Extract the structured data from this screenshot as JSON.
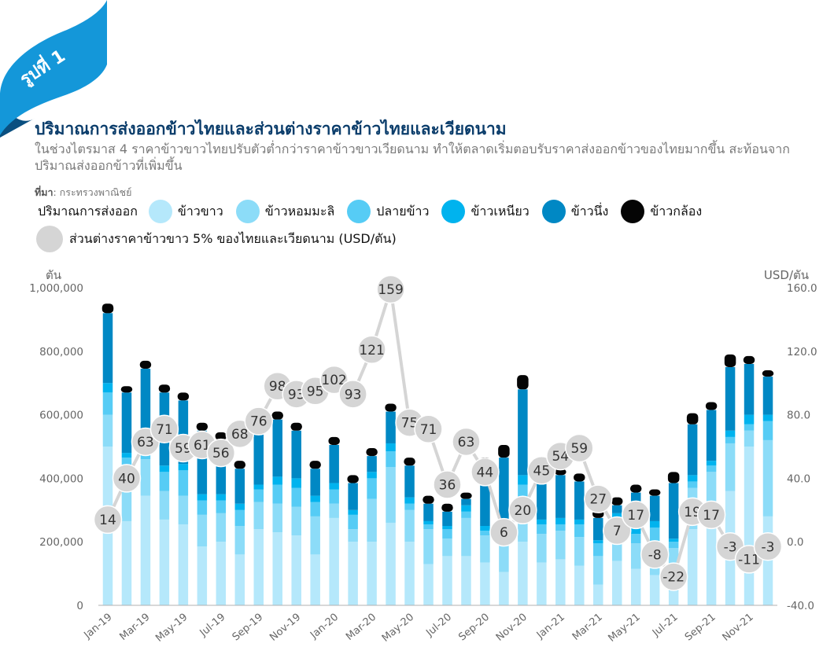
{
  "badge": {
    "label": "รูปที่ 1"
  },
  "title": "ปริมาณการส่งออกข้าวไทยและส่วนต่างราคาข้าวไทยและเวียดนาม",
  "subtitle": "ในช่วงไตรมาส 4 ราคาข้าวขาวไทยปรับตัวต่ำกว่าราคาข้าวขาวเวียดนาม ทำให้ตลาดเริ่มตอบรับราคาส่งออกข้าวของไทยมากขึ้น สะท้อนจากปริมาณส่งออกข้าวที่เพิ่มขึ้น",
  "source": {
    "label": "ที่มา",
    "text": ": กระทรวงพาณิชย์"
  },
  "legend": {
    "lead": "ปริมาณการส่งออก",
    "items": [
      {
        "label": "ข้าวขาว",
        "color": "#b5e8fb"
      },
      {
        "label": "ข้าวหอมมะลิ",
        "color": "#8cdcf8"
      },
      {
        "label": "ปลายข้าว",
        "color": "#56ccf5"
      },
      {
        "label": "ข้าวเหนียว",
        "color": "#00b3ee"
      },
      {
        "label": "ข้าวนึ่ง",
        "color": "#0088c4"
      },
      {
        "label": "ข้าวกล้อง",
        "color": "#050505"
      }
    ],
    "line_label": "ส่วนต่างราคาข้าวขาว 5% ของไทยและเวียดนาม (USD/ตัน)",
    "line_color": "#d5d5d5"
  },
  "chart_data": {
    "type": "bar",
    "left_axis": {
      "unit": "ตัน",
      "ticks": [
        "1,000,000",
        "800,000",
        "600,000",
        "400,000",
        "200,000",
        "0"
      ],
      "ylim": [
        0,
        1000000
      ]
    },
    "right_axis": {
      "unit": "USD/ตัน",
      "ticks": [
        "160.0",
        "120.0",
        "80.0",
        "40.0",
        "0.0",
        "-40.0"
      ],
      "ylim": [
        -40,
        160
      ]
    },
    "x": [
      "Jan-19",
      "Feb-19",
      "Mar-19",
      "Apr-19",
      "May-19",
      "Jun-19",
      "Jul-19",
      "Aug-19",
      "Sep-19",
      "Oct-19",
      "Nov-19",
      "Dec-19",
      "Jan-20",
      "Feb-20",
      "Mar-20",
      "Apr-20",
      "May-20",
      "Jun-20",
      "Jul-20",
      "Aug-20",
      "Sep-20",
      "Oct-20",
      "Nov-20",
      "Dec-20",
      "Jan-21",
      "Feb-21",
      "Mar-21",
      "Apr-21",
      "May-21",
      "Jun-21",
      "Jul-21",
      "Aug-21",
      "Sep-21",
      "Oct-21",
      "Nov-21",
      "Dec-21"
    ],
    "x_tick_labels": [
      "Jan-19",
      "Mar-19",
      "May-19",
      "Jul-19",
      "Sep-19",
      "Nov-19",
      "Jan-20",
      "Mar-20",
      "May-20",
      "Jul-20",
      "Sep-20",
      "Nov-20",
      "Jan-21",
      "Mar-21",
      "May-21",
      "Jul-21",
      "Sep-21",
      "Nov-21"
    ],
    "stacked_series": [
      {
        "label_ref": "ข้าวขาว",
        "values": [
          500000,
          265000,
          345000,
          270000,
          255000,
          185000,
          200000,
          160000,
          240000,
          230000,
          220000,
          160000,
          275000,
          200000,
          200000,
          260000,
          200000,
          130000,
          155000,
          155000,
          135000,
          105000,
          200000,
          135000,
          145000,
          125000,
          65000,
          140000,
          115000,
          95000,
          45000,
          240000,
          300000,
          360000,
          500000,
          280000
        ]
      },
      {
        "label_ref": "ข้าวหอมมะลิ",
        "values": [
          100000,
          130000,
          115000,
          90000,
          90000,
          100000,
          90000,
          90000,
          85000,
          90000,
          90000,
          120000,
          45000,
          40000,
          135000,
          175000,
          100000,
          110000,
          55000,
          120000,
          85000,
          100000,
          140000,
          90000,
          90000,
          90000,
          90000,
          90000,
          80000,
          90000,
          135000,
          130000,
          120000,
          150000,
          50000,
          240000
        ]
      },
      {
        "label_ref": "ปลายข้าว",
        "values": [
          70000,
          70000,
          65000,
          60000,
          80000,
          45000,
          40000,
          50000,
          40000,
          60000,
          60000,
          45000,
          45000,
          45000,
          65000,
          50000,
          20000,
          15000,
          30000,
          20000,
          15000,
          20000,
          40000,
          30000,
          20000,
          40000,
          40000,
          40000,
          30000,
          60000,
          20000,
          20000,
          20000,
          20000,
          20000,
          60000
        ]
      },
      {
        "label_ref": "ข้าวเหนียว",
        "values": [
          30000,
          15000,
          20000,
          20000,
          20000,
          20000,
          20000,
          20000,
          15000,
          25000,
          30000,
          20000,
          20000,
          15000,
          20000,
          25000,
          20000,
          10000,
          10000,
          20000,
          15000,
          20000,
          30000,
          15000,
          20000,
          15000,
          10000,
          20000,
          20000,
          20000,
          10000,
          20000,
          15000,
          20000,
          30000,
          20000
        ]
      },
      {
        "label_ref": "ข้าวนึ่ง",
        "values": [
          220000,
          190000,
          200000,
          230000,
          200000,
          200000,
          170000,
          110000,
          170000,
          180000,
          150000,
          85000,
          120000,
          85000,
          50000,
          100000,
          100000,
          55000,
          45000,
          20000,
          175000,
          220000,
          270000,
          155000,
          135000,
          120000,
          70000,
          25000,
          110000,
          80000,
          175000,
          160000,
          160000,
          200000,
          160000,
          120000
        ]
      },
      {
        "label_ref": "ข้าวกล้อง",
        "values": [
          30000,
          20000,
          25000,
          25000,
          25000,
          25000,
          25000,
          25000,
          25000,
          25000,
          25000,
          25000,
          25000,
          25000,
          25000,
          25000,
          25000,
          25000,
          25000,
          20000,
          40000,
          40000,
          45000,
          25000,
          20000,
          25000,
          25000,
          25000,
          25000,
          20000,
          35000,
          35000,
          25000,
          40000,
          25000,
          20000
        ]
      }
    ],
    "line_series": {
      "label_ref": "ส่วนต่างราคาข้าวขาว 5% ของไทยและเวียดนาม (USD/ตัน)",
      "values": [
        14,
        40,
        63,
        71,
        59,
        61,
        56,
        68,
        76,
        98,
        93,
        95,
        102,
        93,
        121,
        159,
        75,
        71,
        36,
        63,
        44,
        6,
        20,
        45,
        54,
        59,
        27,
        7,
        17,
        -8,
        -22,
        19,
        17,
        -3,
        -11,
        -3
      ]
    },
    "grid": false
  }
}
